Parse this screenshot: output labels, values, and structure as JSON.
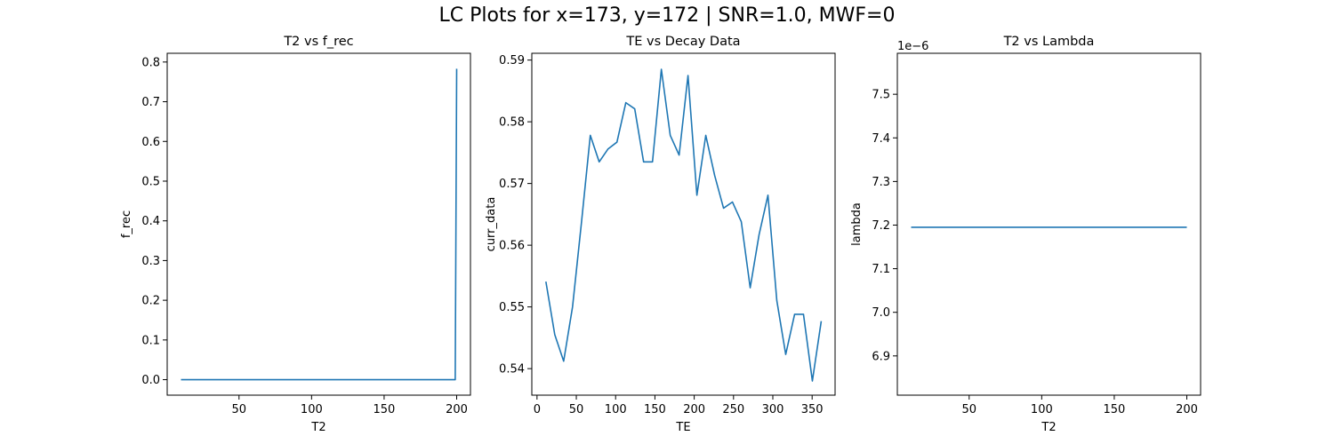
{
  "suptitle": "LC Plots for x=173, y=172 | SNR=1.0, MWF=0",
  "series_color": "#1f77b4",
  "chart_data": [
    {
      "type": "line",
      "title": "T2 vs f_rec",
      "xlabel": "T2",
      "ylabel": "f_rec",
      "xlim": [
        0.5,
        209.5
      ],
      "ylim": [
        -0.039,
        0.822
      ],
      "xticks": [
        50,
        100,
        150,
        200
      ],
      "yticks": [
        0.0,
        0.1,
        0.2,
        0.3,
        0.4,
        0.5,
        0.6,
        0.7,
        0.8
      ],
      "ytick_labels": [
        "0.0",
        "0.1",
        "0.2",
        "0.3",
        "0.4",
        "0.5",
        "0.6",
        "0.7",
        "0.8"
      ],
      "offset_text": "",
      "x": [
        10,
        50,
        100,
        150,
        198,
        199,
        200
      ],
      "y": [
        0.0,
        0.0,
        0.0,
        0.0,
        0.0,
        0.0,
        0.783
      ]
    },
    {
      "type": "line",
      "title": "TE vs Decay Data",
      "xlabel": "TE",
      "ylabel": "curr_data",
      "xlim": [
        -6.6,
        379.2
      ],
      "ylim": [
        0.5357,
        0.5911
      ],
      "xticks": [
        0,
        50,
        100,
        150,
        200,
        250,
        300,
        350
      ],
      "yticks": [
        0.54,
        0.55,
        0.56,
        0.57,
        0.58,
        0.59
      ],
      "ytick_labels": [
        "0.54",
        "0.55",
        "0.56",
        "0.57",
        "0.58",
        "0.59"
      ],
      "offset_text": "",
      "x": [
        11.3,
        22.6,
        33.9,
        45.2,
        56.5,
        67.8,
        79.1,
        90.4,
        101.7,
        113.0,
        124.3,
        135.6,
        146.9,
        158.2,
        169.5,
        180.8,
        192.1,
        203.4,
        214.7,
        226.0,
        237.3,
        248.6,
        259.9,
        271.2,
        282.5,
        293.8,
        305.1,
        316.4,
        327.7,
        339.0,
        350.3,
        361.6
      ],
      "y": [
        0.5541,
        0.5455,
        0.5412,
        0.55,
        0.5636,
        0.5778,
        0.5735,
        0.5756,
        0.5767,
        0.5831,
        0.5821,
        0.5735,
        0.5735,
        0.5885,
        0.5778,
        0.5746,
        0.5875,
        0.5681,
        0.5778,
        0.5713,
        0.566,
        0.567,
        0.5638,
        0.5531,
        0.5617,
        0.5681,
        0.551,
        0.5423,
        0.5488,
        0.5488,
        0.538,
        0.5477
      ]
    },
    {
      "type": "line",
      "title": "T2 vs Lambda",
      "xlabel": "T2",
      "ylabel": "lambda",
      "xlim": [
        0.5,
        209.5
      ],
      "ylim": [
        6.81,
        7.594
      ],
      "xticks": [
        50,
        100,
        150,
        200
      ],
      "yticks": [
        6.9,
        7.0,
        7.1,
        7.2,
        7.3,
        7.4,
        7.5
      ],
      "ytick_labels": [
        "6.9",
        "7.0",
        "7.1",
        "7.2",
        "7.3",
        "7.4",
        "7.5"
      ],
      "offset_text": "1e−6",
      "x": [
        10,
        200
      ],
      "y": [
        7.195,
        7.195
      ]
    }
  ]
}
